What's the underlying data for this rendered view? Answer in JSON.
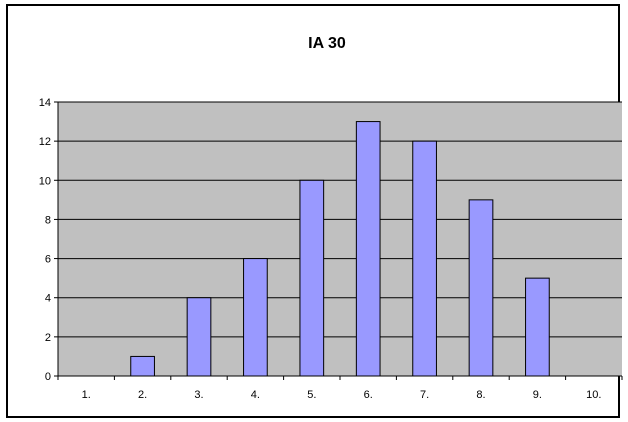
{
  "chart_data": {
    "type": "bar",
    "title": "IA 30",
    "xlabel": "",
    "ylabel": "",
    "categories": [
      "1.",
      "2.",
      "3.",
      "4.",
      "5.",
      "6.",
      "7.",
      "8.",
      "9.",
      "10."
    ],
    "values": [
      0,
      1,
      4,
      6,
      10,
      13,
      12,
      9,
      5,
      0
    ],
    "ylim": [
      0,
      14
    ],
    "yticks": [
      0,
      2,
      4,
      6,
      8,
      10,
      12,
      14
    ],
    "grid": true,
    "legend": "none",
    "colors": {
      "plot_background": "#c0c0c0",
      "bar_fill": "#9999ff",
      "bar_stroke": "#000000",
      "gridline": "#000000"
    }
  }
}
